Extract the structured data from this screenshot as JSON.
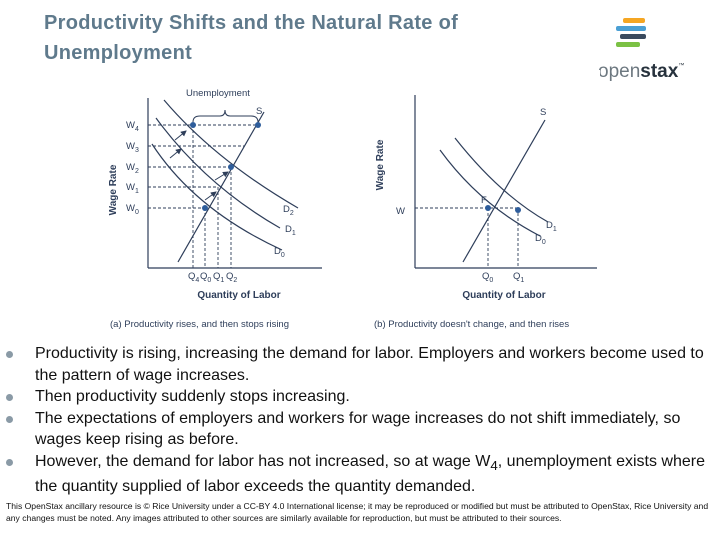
{
  "header": {
    "title": "Productivity Shifts and the Natural Rate of Unemployment"
  },
  "logo": {
    "open": "open",
    "stax": "stax",
    "tm": "™"
  },
  "figure": {
    "panel_a": {
      "unemployment": "Unemployment",
      "s": "S",
      "y_axis": "Wage Rate",
      "x_axis": "Quantity of Labor",
      "wages": [
        {
          "main": "W",
          "sub": "4"
        },
        {
          "main": "W",
          "sub": "3"
        },
        {
          "main": "W",
          "sub": "2"
        },
        {
          "main": "W",
          "sub": "1"
        },
        {
          "main": "W",
          "sub": "0"
        }
      ],
      "demands": [
        {
          "main": "D",
          "sub": "2"
        },
        {
          "main": "D",
          "sub": "1"
        },
        {
          "main": "D",
          "sub": "0"
        }
      ],
      "quantities": [
        {
          "main": "Q",
          "sub": "4"
        },
        {
          "main": "Q",
          "sub": "0"
        },
        {
          "main": "Q",
          "sub": "1"
        },
        {
          "main": "Q",
          "sub": "2"
        }
      ],
      "caption": "(a) Productivity rises, and then stops rising"
    },
    "panel_b": {
      "s": "S",
      "y_axis": "Wage Rate",
      "x_axis": "Quantity of Labor",
      "f": "F",
      "w": "W",
      "demands": [
        {
          "main": "D",
          "sub": "1"
        },
        {
          "main": "D",
          "sub": "0"
        }
      ],
      "quantities": [
        {
          "main": "Q",
          "sub": "0"
        },
        {
          "main": "Q",
          "sub": "1"
        }
      ],
      "caption": "(b) Productivity doesn't change, and then rises"
    }
  },
  "bullets": [
    {
      "parts": [
        "Productivity is rising, increasing the demand for labor. Employers and workers become used to the pattern of wage increases."
      ]
    },
    {
      "parts": [
        "Then productivity suddenly stops increasing."
      ]
    },
    {
      "parts": [
        "The expectations of employers and workers for wage increases do not shift immediately, so wages keep rising as before."
      ]
    },
    {
      "parts": [
        "However, the demand for labor has not increased, so at wage W",
        "4",
        ", unemployment exists where the quantity supplied of labor exceeds the quantity demanded."
      ]
    }
  ],
  "footer": "This OpenStax ancillary resource is © Rice University under a CC-BY 4.0 International license; it may be reproduced or modified but must be attributed to OpenStax, Rice University and any changes must be noted.  Any images attributed to other sources are similarly available for reproduction, but must be attributed to their sources."
}
